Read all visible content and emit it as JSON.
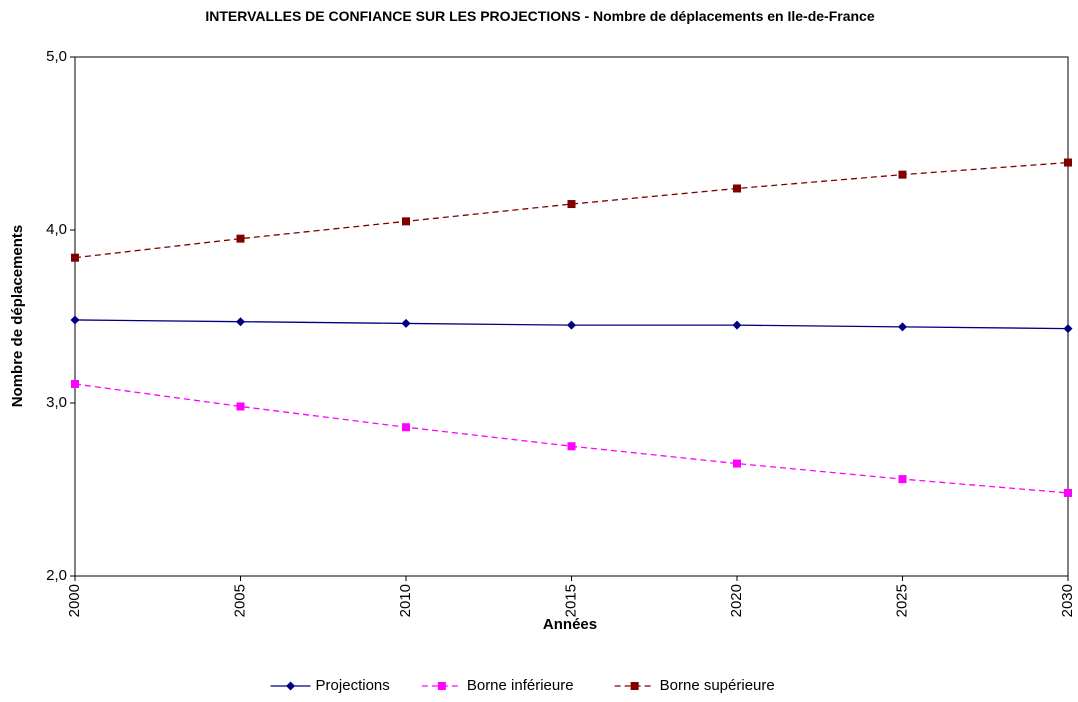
{
  "chart_data": {
    "type": "line",
    "title": "INTERVALLES DE CONFIANCE SUR LES PROJECTIONS - Nombre de déplacements en Ile-de-France",
    "x_label": "Années",
    "y_label": "Nombre de déplacements",
    "x": [
      2000,
      2005,
      2010,
      2015,
      2020,
      2025,
      2030
    ],
    "xlim": [
      2000,
      2030
    ],
    "xticks": [
      2000,
      2005,
      2010,
      2015,
      2020,
      2025,
      2030
    ],
    "ylim": [
      2,
      5
    ],
    "yticks": [
      {
        "value": 2,
        "label": "2,0"
      },
      {
        "value": 3,
        "label": "3,0"
      },
      {
        "value": 4,
        "label": "4,0"
      },
      {
        "value": 5,
        "label": "5,0"
      }
    ],
    "grid": false,
    "legend": "bottom",
    "series": [
      {
        "name": "Projections",
        "color": "#000080",
        "line_style": "solid",
        "marker": "diamond",
        "values": [
          3.48,
          3.47,
          3.46,
          3.45,
          3.45,
          3.44,
          3.43
        ]
      },
      {
        "name": "Borne inférieure",
        "color": "#ff00ff",
        "line_style": "dashed",
        "marker": "square",
        "values": [
          3.11,
          2.98,
          2.86,
          2.75,
          2.65,
          2.56,
          2.48
        ]
      },
      {
        "name": "Borne supérieure",
        "color": "#800000",
        "line_style": "dashed",
        "marker": "square",
        "values": [
          3.84,
          3.95,
          4.05,
          4.15,
          4.24,
          4.32,
          4.39
        ]
      }
    ]
  }
}
